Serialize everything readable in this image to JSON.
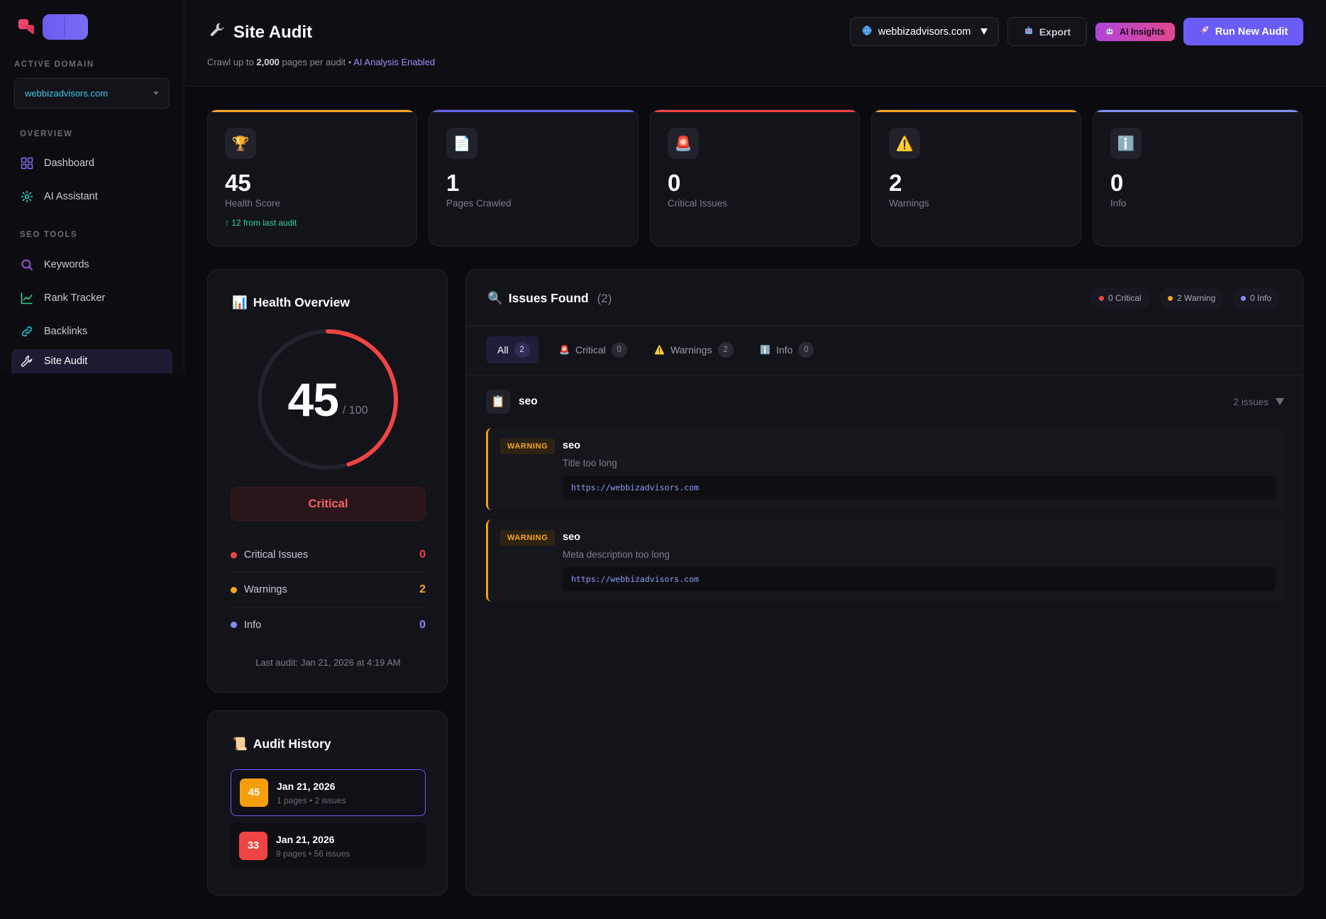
{
  "sidebar": {
    "active_domain_label": "ACTIVE DOMAIN",
    "domain_value": "webbizadvisors.com",
    "overview_label": "OVERVIEW",
    "seo_tools_label": "SEO TOOLS",
    "items": [
      {
        "label": "Dashboard",
        "icon": "grid-icon"
      },
      {
        "label": "AI Assistant",
        "icon": "sparkle-icon"
      },
      {
        "label": "Keywords",
        "icon": "search-icon"
      },
      {
        "label": "Rank Tracker",
        "icon": "chart-line-icon"
      },
      {
        "label": "Backlinks",
        "icon": "link-icon"
      },
      {
        "label": "Site Audit",
        "icon": "wrench-icon",
        "active": true
      }
    ]
  },
  "header": {
    "title": "Site Audit",
    "subtitle_prefix": "Crawl up to",
    "subtitle_count": "2,000",
    "subtitle_suffix": "pages per audit •",
    "subtitle_ai": "AI Analysis Enabled",
    "domain_button": "webbizadvisors.com",
    "export_label": "Export",
    "ai_insights_label": "AI Insights",
    "run_label": "Run New Audit"
  },
  "stats": [
    {
      "value": "45",
      "label": "Health Score",
      "delta": "↑ 12 from last audit",
      "icon": "trophy-icon",
      "color": "#f5a623"
    },
    {
      "value": "1",
      "label": "Pages Crawled",
      "icon": "document-icon",
      "color": "#6366f1"
    },
    {
      "value": "0",
      "label": "Critical Issues",
      "icon": "siren-icon",
      "color": "#ef4444"
    },
    {
      "value": "2",
      "label": "Warnings",
      "icon": "warning-icon",
      "color": "#f5a623"
    },
    {
      "value": "0",
      "label": "Info",
      "icon": "info-icon",
      "color": "#818cf8"
    }
  ],
  "health": {
    "title": "Health Overview",
    "score": "45",
    "score_max": "/ 100",
    "score_fraction": 0.45,
    "status": "Critical",
    "legend": [
      {
        "label": "Critical Issues",
        "value": "0",
        "color": "#ef4444"
      },
      {
        "label": "Warnings",
        "value": "2",
        "color": "#f5a623"
      },
      {
        "label": "Info",
        "value": "0",
        "color": "#818cf8"
      }
    ],
    "last_audit": "Last audit: Jan 21, 2026 at 4:19 AM"
  },
  "history": {
    "title": "Audit History",
    "items": [
      {
        "score": "45",
        "date": "Jan 21, 2026",
        "meta": "1 pages • 2 issues",
        "color": "#f59e0b"
      },
      {
        "score": "33",
        "date": "Jan 21, 2026",
        "meta": "9 pages • 56 issues",
        "color": "#ef4444"
      }
    ]
  },
  "issues": {
    "title": "Issues Found",
    "count": "(2)",
    "summary": [
      {
        "label": "0 Critical",
        "color": "#ef4444"
      },
      {
        "label": "2 Warning",
        "color": "#f5a623"
      },
      {
        "label": "0 Info",
        "color": "#818cf8"
      }
    ],
    "tabs": [
      {
        "label": "All",
        "count": "2"
      },
      {
        "label": "Critical",
        "count": "0"
      },
      {
        "label": "Warnings",
        "count": "2"
      },
      {
        "label": "Info",
        "count": "0"
      }
    ],
    "group": {
      "name": "seo",
      "count": "2 issues"
    },
    "items": [
      {
        "severity": "WARNING",
        "category": "seo",
        "description": "Title too long",
        "url": "https://webbizadvisors.com"
      },
      {
        "severity": "WARNING",
        "category": "seo",
        "description": "Meta description too long",
        "url": "https://webbizadvisors.com"
      }
    ]
  }
}
